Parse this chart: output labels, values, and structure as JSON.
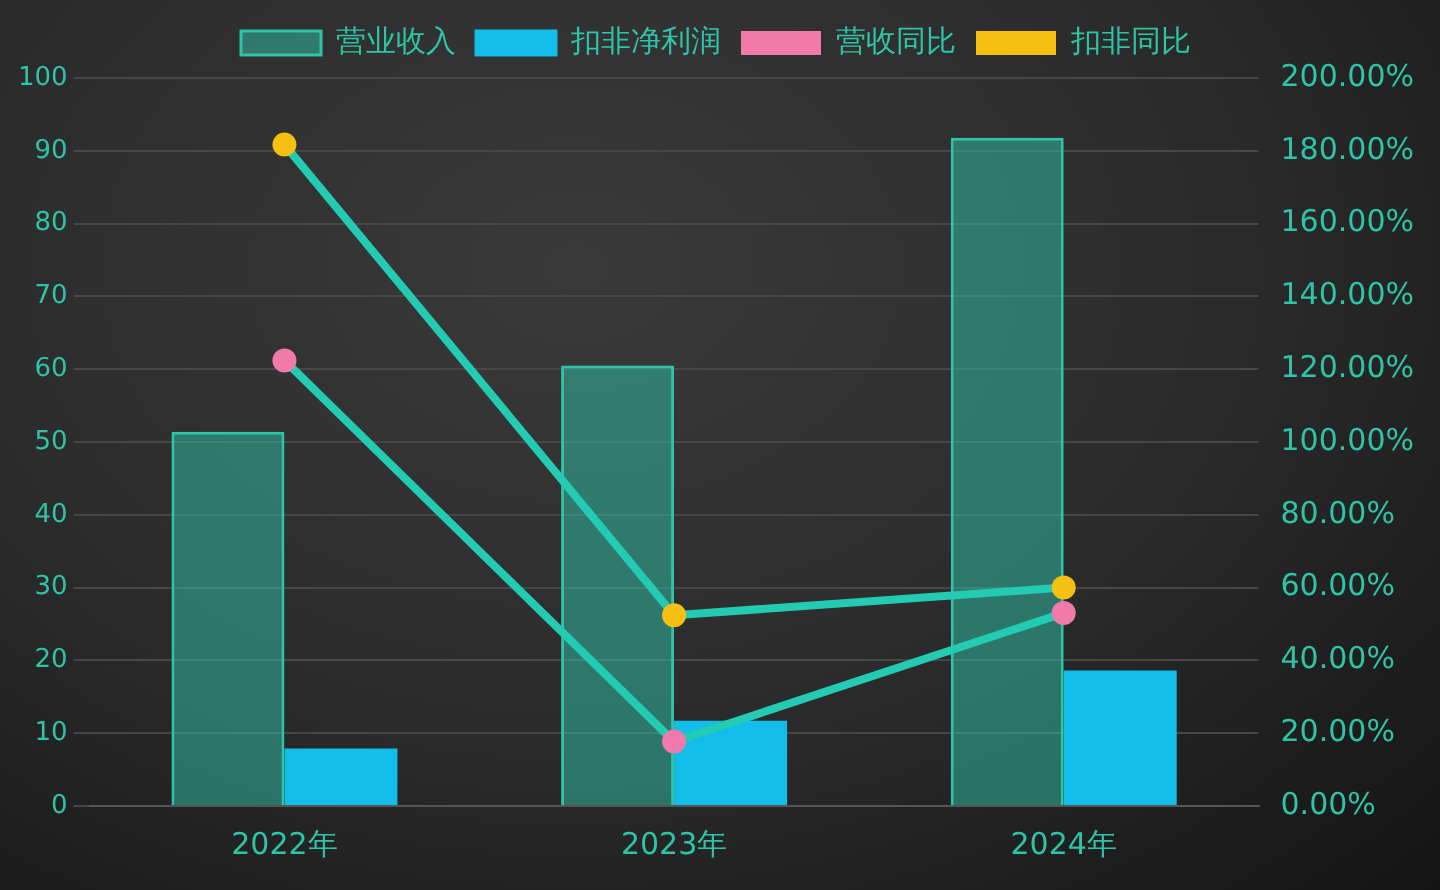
{
  "chart_data": {
    "type": "bar",
    "categories": [
      "2022年",
      "2023年",
      "2024年"
    ],
    "series": [
      {
        "name": "营业收入",
        "color": "#2ec4a8",
        "values": [
          51.4,
          60.5,
          91.8
        ]
      },
      {
        "name": "扣非净利润",
        "color": "#12bdea",
        "values": [
          7.9,
          11.7,
          18.6
        ]
      },
      {
        "name": "营收同比",
        "type": "line",
        "axis": "y2",
        "color": "#22cbb2",
        "colors": [
          "#f27aaa",
          "#f27aaa",
          "#f27aaa"
        ],
        "values": [
          122.4,
          17.7,
          53
        ]
      },
      {
        "name": "扣非同比",
        "type": "line",
        "axis": "y2",
        "color": "#22cbb2",
        "colors": [
          "#f5c012",
          "#f5c012",
          "#f5c012"
        ],
        "values": [
          181.7,
          52.4,
          60
        ]
      }
    ],
    "ylim": [
      0,
      100
    ],
    "yticks": [
      0,
      10,
      20,
      30,
      40,
      50,
      60,
      70,
      80,
      90,
      100
    ],
    "y2lim": [
      0,
      200
    ],
    "y2ticks": [
      {
        "value": 0,
        "label": "0.00%"
      },
      {
        "value": 20,
        "label": "20.00%"
      },
      {
        "value": 40,
        "label": "40.00%"
      },
      {
        "value": 60,
        "label": "60.00%"
      },
      {
        "value": 80,
        "label": "80.00%"
      },
      {
        "value": 100,
        "label": "100.00%"
      },
      {
        "value": 120,
        "label": "120.00%"
      },
      {
        "value": 140,
        "label": "140.00%"
      },
      {
        "value": 160,
        "label": "160.00%"
      },
      {
        "value": 180,
        "label": "180.00%"
      },
      {
        "value": 200,
        "label": "200.00%"
      }
    ],
    "grid": "y",
    "legend": "top",
    "marker": "circle"
  }
}
